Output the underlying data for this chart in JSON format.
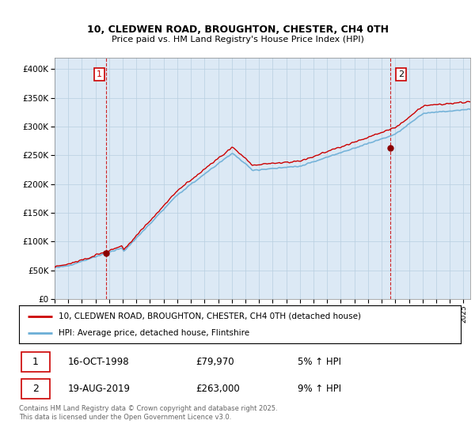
{
  "title_line1": "10, CLEDWEN ROAD, BROUGHTON, CHESTER, CH4 0TH",
  "title_line2": "Price paid vs. HM Land Registry's House Price Index (HPI)",
  "ylim": [
    0,
    420000
  ],
  "yticks": [
    0,
    50000,
    100000,
    150000,
    200000,
    250000,
    300000,
    350000,
    400000
  ],
  "ytick_labels": [
    "£0",
    "£50K",
    "£100K",
    "£150K",
    "£200K",
    "£250K",
    "£300K",
    "£350K",
    "£400K"
  ],
  "sale1": {
    "date_num": 1998.79,
    "price": 79970,
    "label": "1",
    "date_str": "16-OCT-1998",
    "pct": "5% ↑ HPI"
  },
  "sale2": {
    "date_num": 2019.63,
    "price": 263000,
    "label": "2",
    "date_str": "19-AUG-2019",
    "pct": "9% ↑ HPI"
  },
  "hpi_line_color": "#6baed6",
  "price_line_color": "#cc0000",
  "sale_marker_color": "#8b0000",
  "vline_color": "#cc0000",
  "background_color": "#dce9f5",
  "grid_color": "#b8cfe0",
  "legend_label_red": "10, CLEDWEN ROAD, BROUGHTON, CHESTER, CH4 0TH (detached house)",
  "legend_label_blue": "HPI: Average price, detached house, Flintshire",
  "footer": "Contains HM Land Registry data © Crown copyright and database right 2025.\nThis data is licensed under the Open Government Licence v3.0.",
  "xmin": 1995.0,
  "xmax": 2025.5
}
